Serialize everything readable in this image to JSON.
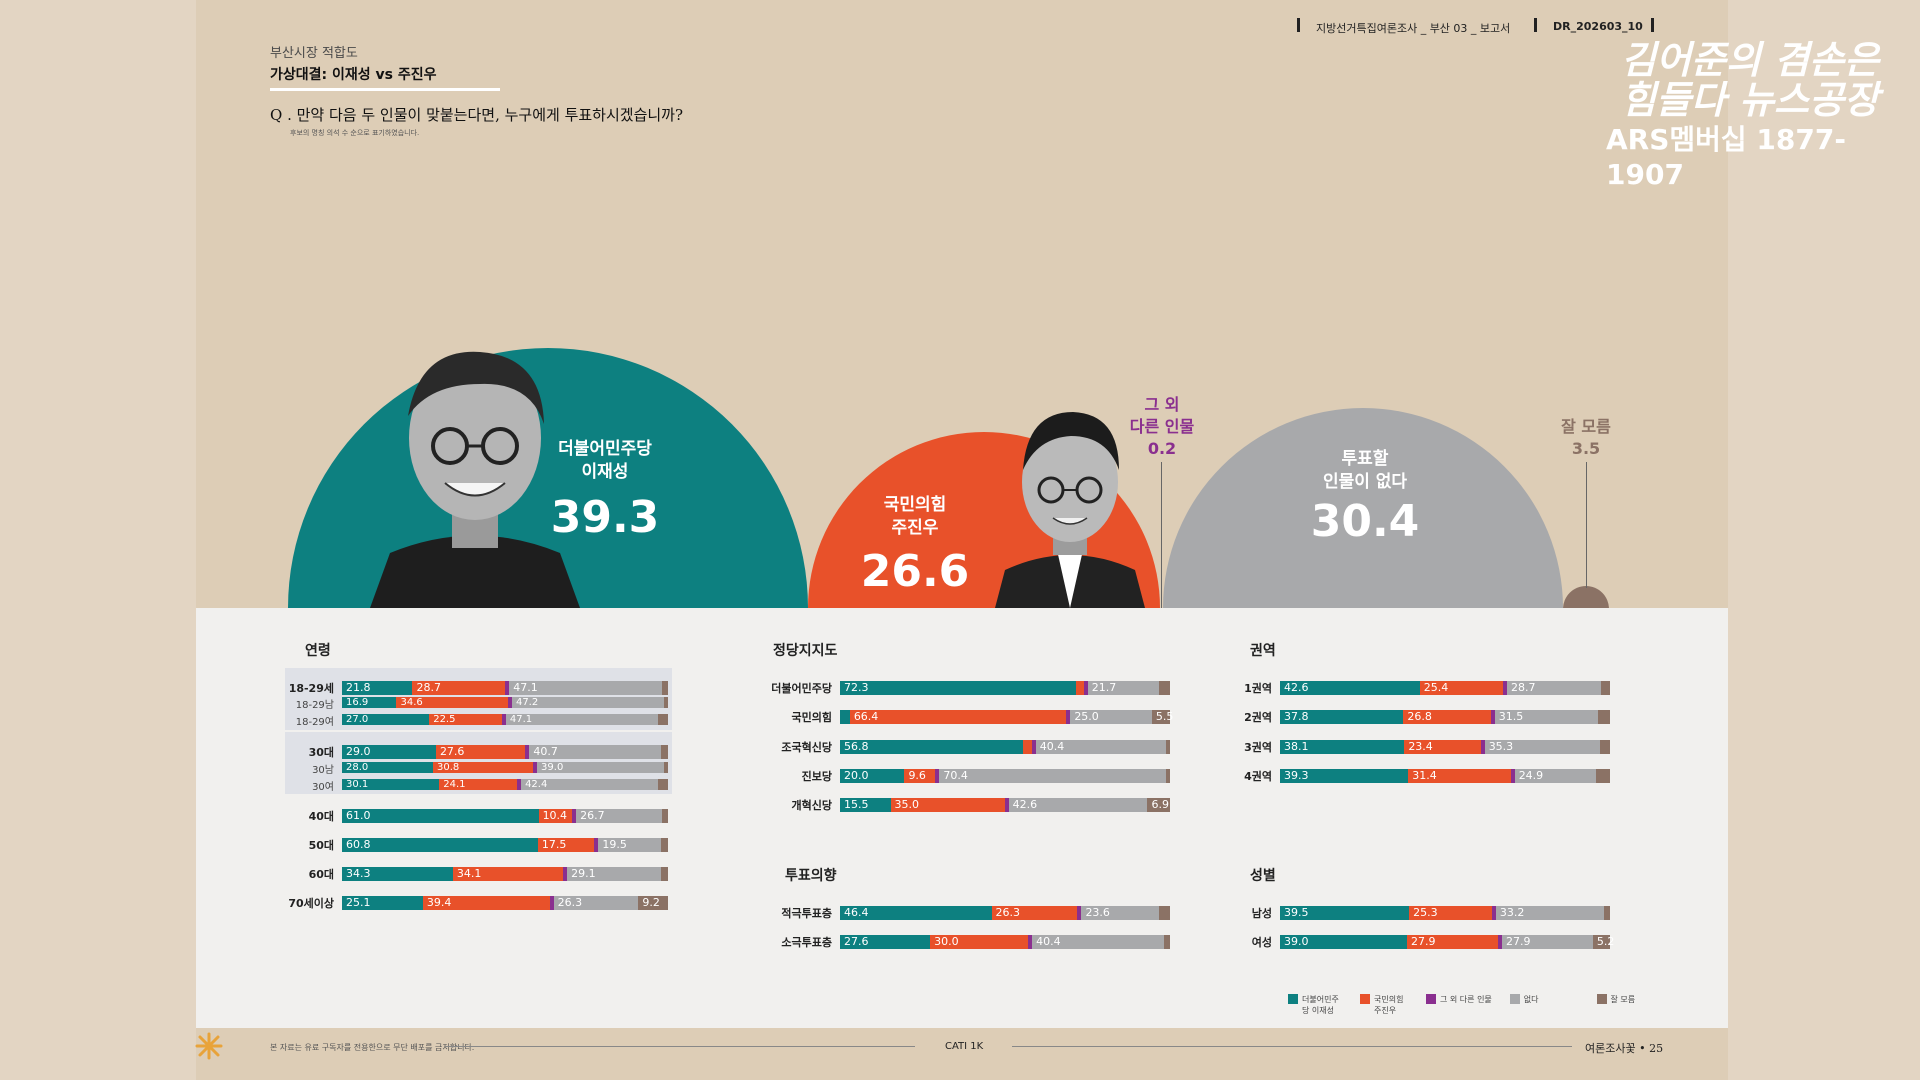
{
  "header": {
    "category": "부산시장 적합도",
    "subtitle": "가상대결: 이재성 vs 주진우",
    "question": "Q . 만약 다음 두 인물이 맞붙는다면, 누구에게 투표하시겠습니까?",
    "question_note": "후보의 명칭 의석 수 순으로 표기하였습니다.",
    "report_series": "지방선거특집여론조사 _ 부산 03 _ 보고서",
    "report_code": "DR_202603_10"
  },
  "logo": {
    "title": "김어준의 겸손은힘들다 뉴스공장",
    "membership": "ARS멤버십 1877-1907"
  },
  "colors": {
    "teal": "#0d8080",
    "orange": "#e8512a",
    "purple": "#8a2f8f",
    "gray": "#a8a9ab",
    "brown": "#8b7265"
  },
  "main_result": {
    "lee": {
      "party": "더불어민주당",
      "name": "이재성",
      "value": "39.3"
    },
    "joo": {
      "party": "국민의힘",
      "name": "주진우",
      "value": "26.6"
    },
    "other": {
      "line1": "그 외",
      "line2": "다른 인물",
      "value": "0.2"
    },
    "none": {
      "line1": "투표할",
      "line2": "인물이 없다",
      "value": "30.4"
    },
    "dontknow": {
      "label": "잘 모름",
      "value": "3.5"
    }
  },
  "chart_data": [
    {
      "type": "bar",
      "title": "연령",
      "stacked": true,
      "series_order": [
        "더불어민주당 이재성",
        "국민의힘 주진우",
        "그 외 다른 인물",
        "없다",
        "잘 모름"
      ],
      "rows": [
        {
          "label": "18-29세",
          "values": [
            21.8,
            28.7,
            0.4,
            47.1,
            2.0
          ]
        },
        {
          "label": "18-29남",
          "values": [
            16.9,
            34.6,
            0.4,
            47.2,
            0.9
          ]
        },
        {
          "label": "18-29여",
          "values": [
            27.0,
            22.5,
            0.3,
            47.1,
            3.1
          ]
        },
        {
          "label": "30대",
          "values": [
            29.0,
            27.6,
            0.6,
            40.7,
            2.1
          ]
        },
        {
          "label": "30남",
          "values": [
            28.0,
            30.8,
            0.9,
            39.0,
            1.3
          ]
        },
        {
          "label": "30여",
          "values": [
            30.1,
            24.1,
            0.3,
            42.4,
            3.1
          ]
        },
        {
          "label": "40대",
          "values": [
            61.0,
            10.4,
            0.1,
            26.7,
            1.8
          ]
        },
        {
          "label": "50대",
          "values": [
            60.8,
            17.5,
            0.1,
            19.5,
            2.1
          ]
        },
        {
          "label": "60대",
          "values": [
            34.3,
            34.1,
            0.4,
            29.1,
            2.1
          ]
        },
        {
          "label": "70세이상",
          "values": [
            25.1,
            39.4,
            0.1,
            26.3,
            9.2
          ]
        }
      ]
    },
    {
      "type": "bar",
      "title": "정당지지도",
      "stacked": true,
      "rows": [
        {
          "label": "더불어민주당",
          "values": [
            72.3,
            2.4,
            0.1,
            21.7,
            3.5
          ]
        },
        {
          "label": "국민의힘",
          "values": [
            3.0,
            66.4,
            0.1,
            25.0,
            5.5
          ]
        },
        {
          "label": "조국혁신당",
          "values": [
            56.8,
            2.7,
            0.1,
            40.4,
            0.0
          ]
        },
        {
          "label": "진보당",
          "values": [
            20.0,
            9.6,
            0.0,
            70.4,
            0.0
          ]
        },
        {
          "label": "개혁신당",
          "values": [
            15.5,
            35.0,
            0.0,
            42.6,
            6.9
          ]
        }
      ]
    },
    {
      "type": "bar",
      "title": "투표의향",
      "stacked": true,
      "rows": [
        {
          "label": "적극투표층",
          "values": [
            46.4,
            26.3,
            0.2,
            23.6,
            3.5
          ]
        },
        {
          "label": "소극투표층",
          "values": [
            27.6,
            30.0,
            0.2,
            40.4,
            1.8
          ]
        }
      ]
    },
    {
      "type": "bar",
      "title": "권역",
      "stacked": true,
      "rows": [
        {
          "label": "1권역",
          "values": [
            42.6,
            25.4,
            0.6,
            28.7,
            2.7
          ]
        },
        {
          "label": "2권역",
          "values": [
            37.8,
            26.8,
            0.1,
            31.5,
            3.8
          ]
        },
        {
          "label": "3권역",
          "values": [
            38.1,
            23.4,
            0.1,
            35.3,
            3.1
          ]
        },
        {
          "label": "4권역",
          "values": [
            39.3,
            31.4,
            0.1,
            24.9,
            4.3
          ]
        }
      ]
    },
    {
      "type": "bar",
      "title": "성별",
      "stacked": true,
      "rows": [
        {
          "label": "남성",
          "values": [
            39.5,
            25.3,
            0.3,
            33.2,
            1.7
          ]
        },
        {
          "label": "여성",
          "values": [
            39.0,
            27.9,
            0.1,
            27.9,
            5.2
          ]
        }
      ]
    }
  ],
  "legend": [
    {
      "label": "더불어민주당 이재성",
      "color": "#0d8080"
    },
    {
      "label": "국민의힘 주진우",
      "color": "#e8512a"
    },
    {
      "label": "그 외 다른 인물",
      "color": "#8a2f8f"
    },
    {
      "label": "없다",
      "color": "#a8a9ab"
    },
    {
      "label": "잘 모름",
      "color": "#8b7265"
    }
  ],
  "footer": {
    "copyright": "본 자료는 유료 구독자를 전용한으로 무단 배포를 금지합니다.",
    "method": "CATI 1K",
    "page": "여론조사꽃 • 25"
  }
}
